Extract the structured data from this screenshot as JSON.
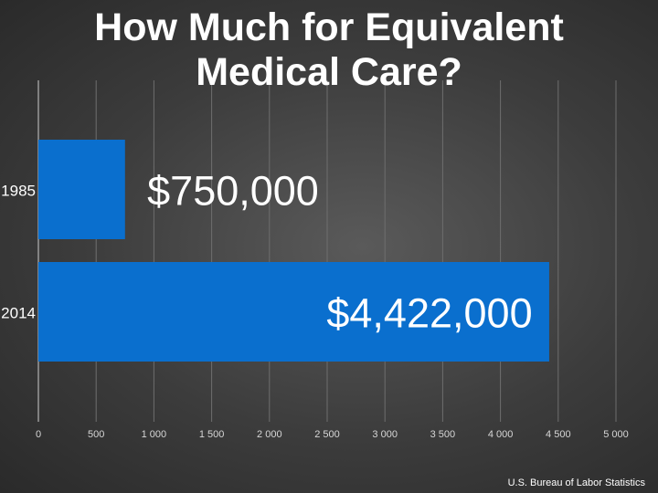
{
  "chart_data": {
    "type": "bar",
    "orientation": "horizontal",
    "title": "How Much for Equivalent Medical Care?",
    "categories": [
      "1985",
      "2014"
    ],
    "values": [
      750,
      4422
    ],
    "data_labels": [
      "$750,000",
      "$4,422,000"
    ],
    "xlim": [
      0,
      5000
    ],
    "x_ticks": [
      0,
      500,
      1000,
      1500,
      2000,
      2500,
      3000,
      3500,
      4000,
      4500,
      5000
    ],
    "x_tick_labels": [
      "0",
      "500",
      "1 000",
      "1 500",
      "2 000",
      "2 500",
      "3 000",
      "3 500",
      "4 000",
      "4 500",
      "5 000"
    ],
    "grid": "vertical",
    "bar_color": "#0a6fce"
  },
  "source": "U.S. Bureau of Labor Statistics"
}
